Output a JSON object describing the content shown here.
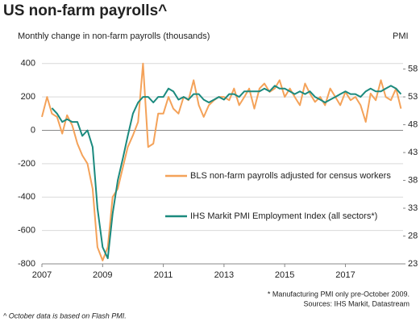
{
  "chart_data": {
    "type": "line",
    "title": "US non-farm payrolls^",
    "y_label": "Monthly change in non-farm payrolls (thousands)",
    "y2_label": "PMI",
    "notes": [
      "* Manufacturing PMI only pre-October 2009.",
      "Sources: IHS Markit, Datastream"
    ],
    "footnote": "^ October data is based on Flash PMI.",
    "x": [
      2007.0,
      2007.17,
      2007.33,
      2007.5,
      2007.67,
      2007.83,
      2008.0,
      2008.17,
      2008.33,
      2008.5,
      2008.67,
      2008.83,
      2009.0,
      2009.17,
      2009.33,
      2009.5,
      2009.67,
      2009.83,
      2010.0,
      2010.17,
      2010.33,
      2010.5,
      2010.67,
      2010.83,
      2011.0,
      2011.17,
      2011.33,
      2011.5,
      2011.67,
      2011.83,
      2012.0,
      2012.17,
      2012.33,
      2012.5,
      2012.67,
      2012.83,
      2013.0,
      2013.17,
      2013.33,
      2013.5,
      2013.67,
      2013.83,
      2014.0,
      2014.17,
      2014.33,
      2014.5,
      2014.67,
      2014.83,
      2015.0,
      2015.17,
      2015.33,
      2015.5,
      2015.67,
      2015.83,
      2016.0,
      2016.17,
      2016.33,
      2016.5,
      2016.67,
      2016.83,
      2017.0,
      2017.17,
      2017.33,
      2017.5,
      2017.67,
      2017.83,
      2018.0,
      2018.17,
      2018.33,
      2018.5,
      2018.67,
      2018.83
    ],
    "series": [
      {
        "name": "BLS non-farm payrolls adjusted for census workers",
        "color": "#f4a259",
        "axis": "y",
        "values": [
          80,
          200,
          100,
          80,
          -20,
          90,
          30,
          -80,
          -150,
          -200,
          -350,
          -700,
          -780,
          -700,
          -400,
          -350,
          -220,
          -100,
          -30,
          50,
          400,
          -100,
          -80,
          100,
          100,
          200,
          130,
          100,
          200,
          180,
          300,
          150,
          80,
          150,
          180,
          200,
          200,
          180,
          250,
          150,
          200,
          250,
          130,
          250,
          280,
          230,
          250,
          300,
          200,
          250,
          200,
          150,
          280,
          220,
          170,
          200,
          150,
          250,
          200,
          150,
          230,
          180,
          200,
          150,
          50,
          220,
          180,
          300,
          200,
          180,
          250,
          130
        ]
      },
      {
        "name": "IHS Markit PMI Employment Index (all sectors*)",
        "color": "#1b8a7e",
        "axis": "y2",
        "values": [
          null,
          null,
          51,
          50,
          48.5,
          49,
          48.5,
          48.5,
          46,
          47,
          44,
          33,
          26,
          24,
          32,
          38,
          42,
          46,
          50,
          52,
          53,
          53,
          52,
          53,
          53,
          54.5,
          54,
          52.5,
          53,
          52.5,
          53.5,
          53.5,
          52.5,
          52,
          52.5,
          53,
          52.5,
          53.5,
          53.5,
          53,
          54,
          54,
          54,
          54,
          54.5,
          54,
          55,
          54.5,
          54.5,
          54,
          53.5,
          54,
          53.5,
          54,
          53,
          52.5,
          52,
          52.5,
          53,
          53.5,
          54,
          53.5,
          53.5,
          53,
          54,
          54.5,
          54,
          54,
          54.5,
          55,
          54.5,
          53.5
        ]
      }
    ],
    "xlim": [
      2007,
      2018.9
    ],
    "xticks": [
      2007,
      2009,
      2011,
      2013,
      2015,
      2017
    ],
    "ylim": [
      -800,
      500
    ],
    "yticks": [
      -800,
      -600,
      -400,
      -200,
      0,
      200,
      400
    ],
    "y2lim": [
      23,
      62
    ],
    "y2ticks": [
      23,
      28,
      33,
      38,
      43,
      48,
      53,
      58
    ],
    "grid": true
  }
}
